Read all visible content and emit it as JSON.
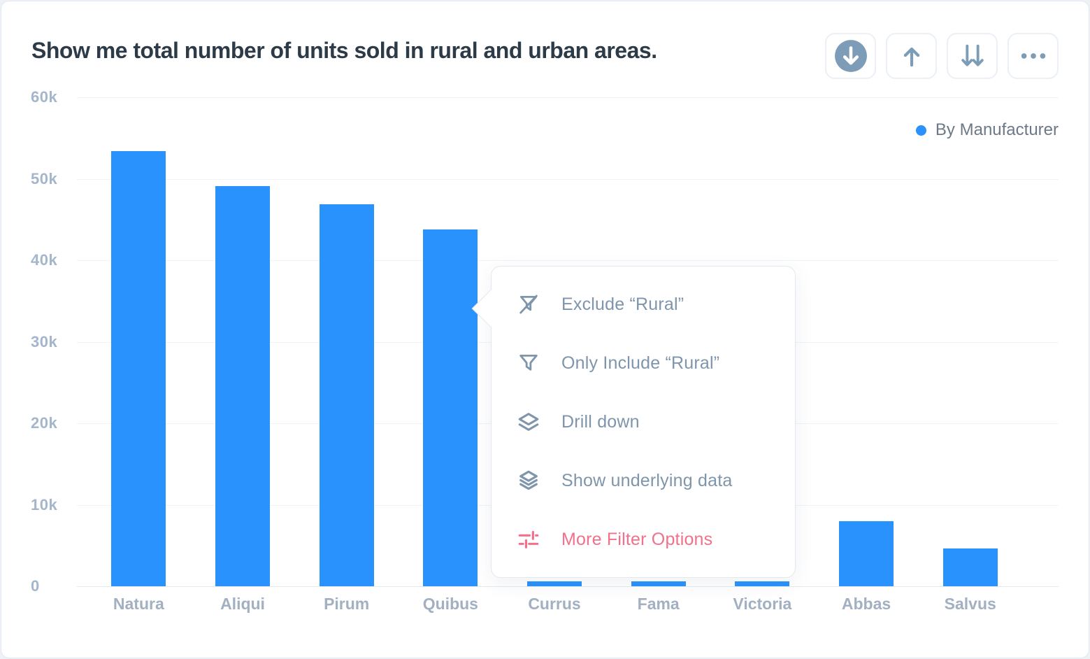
{
  "header": {
    "title": "Show me total number of units sold in rural and urban areas.",
    "toolbar": [
      {
        "name": "download-button",
        "icon": "circle-down-arrow-icon"
      },
      {
        "name": "upvote-button",
        "icon": "up-arrow-icon"
      },
      {
        "name": "downvote-button",
        "icon": "double-down-arrow-icon"
      },
      {
        "name": "more-options-button",
        "icon": "ellipsis-icon"
      }
    ],
    "toolbar_icon_color": "#7d9cb8"
  },
  "legend": {
    "label": "By Manufacturer",
    "dot_color": "#2a92fc"
  },
  "chart_data": {
    "type": "bar",
    "title": "Show me total number of units sold in rural and urban areas.",
    "categories": [
      "Natura",
      "Aliqui",
      "Pirum",
      "Quibus",
      "Currus",
      "Fama",
      "Victoria",
      "Abbas",
      "Salvus"
    ],
    "values": [
      53400,
      49100,
      46900,
      43800,
      600,
      600,
      600,
      8000,
      4600
    ],
    "series": [
      {
        "name": "By Manufacturer",
        "values": [
          53400,
          49100,
          46900,
          43800,
          600,
          600,
          600,
          8000,
          4600
        ]
      }
    ],
    "xlabel": "",
    "ylabel": "",
    "ylim": [
      0,
      60000
    ],
    "yticks": [
      "60k",
      "50k",
      "40k",
      "30k",
      "20k",
      "10k",
      "0"
    ],
    "grid": true,
    "legend": [
      "By Manufacturer"
    ],
    "legend_position": "top-right",
    "bar_color": "#2a92fc"
  },
  "context_menu": {
    "anchor_category": "Quibus",
    "items": [
      {
        "label": "Exclude “Rural”",
        "icon": "filter-slash-icon",
        "color": "#7e95ac"
      },
      {
        "label": "Only Include “Rural”",
        "icon": "filter-icon",
        "color": "#7e95ac"
      },
      {
        "label": "Drill down",
        "icon": "drill-down-layers-icon",
        "color": "#7e95ac"
      },
      {
        "label": "Show underlying data",
        "icon": "stacked-layers-icon",
        "color": "#7e95ac"
      },
      {
        "label": "More Filter Options",
        "icon": "filter-sliders-icon",
        "color": "#f3708a"
      }
    ]
  }
}
